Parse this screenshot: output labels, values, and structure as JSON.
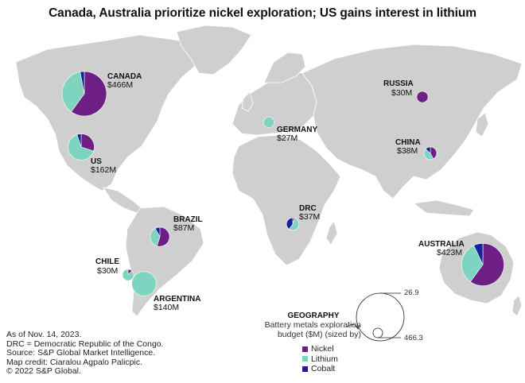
{
  "title": "Canada, Australia prioritize nickel exploration; US gains interest in lithium",
  "colors": {
    "nickel": "#6e1f86",
    "lithium": "#7fd4bf",
    "cobalt": "#17229a",
    "land": "#cfcfcf"
  },
  "countries": [
    {
      "name": "CANADA",
      "value": "$466M",
      "budget": 466,
      "nickel": 0.6,
      "lithium": 0.37,
      "cobalt": 0.03
    },
    {
      "name": "US",
      "value": "$162M",
      "budget": 162,
      "nickel": 0.3,
      "lithium": 0.65,
      "cobalt": 0.05
    },
    {
      "name": "BRAZIL",
      "value": "$87M",
      "budget": 87,
      "nickel": 0.55,
      "lithium": 0.37,
      "cobalt": 0.08
    },
    {
      "name": "CHILE",
      "value": "$30M",
      "budget": 30,
      "nickel": 0.12,
      "lithium": 0.88,
      "cobalt": 0.0
    },
    {
      "name": "ARGENTINA",
      "value": "$140M",
      "budget": 140,
      "nickel": 0.0,
      "lithium": 1.0,
      "cobalt": 0.0
    },
    {
      "name": "GERMANY",
      "value": "$27M",
      "budget": 27,
      "nickel": 0.0,
      "lithium": 1.0,
      "cobalt": 0.0
    },
    {
      "name": "RUSSIA",
      "value": "$30M",
      "budget": 30,
      "nickel": 1.0,
      "lithium": 0.0,
      "cobalt": 0.0
    },
    {
      "name": "CHINA",
      "value": "$38M",
      "budget": 38,
      "nickel": 0.42,
      "lithium": 0.45,
      "cobalt": 0.13
    },
    {
      "name": "DRC",
      "value": "$37M",
      "budget": 37,
      "nickel": 0.05,
      "lithium": 0.55,
      "cobalt": 0.4
    },
    {
      "name": "AUSTRALIA",
      "value": "$423M",
      "budget": 423,
      "nickel": 0.6,
      "lithium": 0.33,
      "cobalt": 0.07
    }
  ],
  "size_legend": {
    "title": "GEOGRAPHY",
    "subtitle_line1": "Battery metals exploration",
    "subtitle_line2": "budget ($M) (sized by)",
    "max_label": "26.9",
    "min_label": "466.3"
  },
  "legend": {
    "nickel": "Nickel",
    "lithium": "Lithium",
    "cobalt": "Cobalt"
  },
  "notes": [
    "As of Nov. 14, 2023.",
    "DRC = Democratic Republic of the Congo.",
    "Source: S&P Global Market Intelligence.",
    "Map credit: Ciaralou Agpalo Palicpic.",
    "© 2022 S&P Global."
  ]
}
